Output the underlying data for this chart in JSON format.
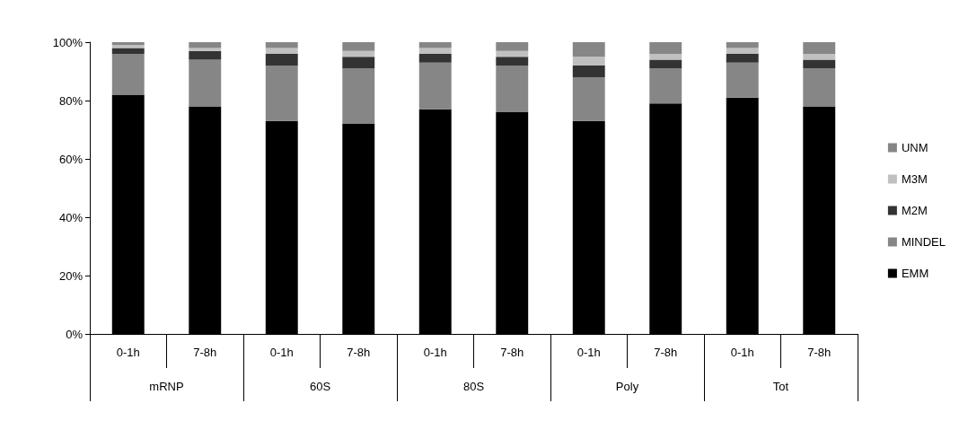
{
  "chart_data": {
    "type": "bar",
    "stacked": true,
    "categories": [
      "0-1h",
      "7-8h",
      "0-1h",
      "7-8h",
      "0-1h",
      "7-8h",
      "0-1h",
      "7-8h",
      "0-1h",
      "7-8h"
    ],
    "annotations": [
      "mRNP",
      "60S",
      "80S",
      "Poly",
      "Tot"
    ],
    "series": [
      {
        "name": "EMM",
        "color": "#000000",
        "values": [
          82,
          78,
          73,
          72,
          77,
          76,
          73,
          79,
          81,
          78
        ]
      },
      {
        "name": "MINDEL",
        "color": "#868686",
        "values": [
          14,
          16,
          19,
          19,
          16,
          16,
          15,
          12,
          12,
          13
        ]
      },
      {
        "name": "M2M",
        "color": "#333333",
        "values": [
          2,
          3,
          4,
          4,
          3,
          3,
          4,
          3,
          3,
          3
        ]
      },
      {
        "name": "M3M",
        "color": "#c0c0c0",
        "values": [
          1,
          1,
          2,
          2,
          2,
          2,
          3,
          2,
          2,
          2
        ]
      },
      {
        "name": "UNM",
        "color": "#868686",
        "values": [
          1,
          2,
          2,
          3,
          2,
          3,
          5,
          4,
          2,
          4
        ]
      }
    ],
    "ylim": [
      0,
      100
    ],
    "yticks": [
      {
        "value": 0,
        "label": "0%"
      },
      {
        "value": 20,
        "label": "20%"
      },
      {
        "value": 40,
        "label": "40%"
      },
      {
        "value": 60,
        "label": "60%"
      },
      {
        "value": 80,
        "label": "80%"
      },
      {
        "value": 100,
        "label": "100%"
      }
    ],
    "grid": false,
    "legend": "right"
  }
}
